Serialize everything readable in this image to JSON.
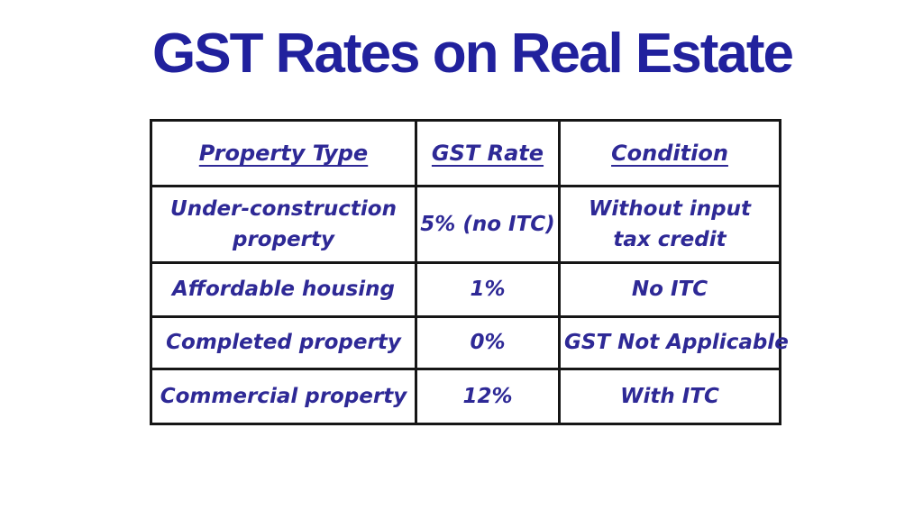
{
  "title": {
    "text": "GST Rates on Real Estate",
    "color": "#21219d"
  },
  "table": {
    "text_color": "#2e2996",
    "border_color": "#161616",
    "headers": [
      "Property Type",
      "GST Rate",
      "Condition"
    ],
    "cells": [
      [
        "Under-construction\nproperty",
        "5% (no ITC)",
        "Without input\ntax credit"
      ],
      [
        "Affordable housing",
        "1%",
        "No ITC"
      ],
      [
        "Completed property",
        "0%",
        "GST Not Applicable"
      ],
      [
        "Commercial property",
        "12%",
        "With ITC"
      ]
    ]
  },
  "chart_data": {
    "type": "table",
    "title": "GST Rates on Real Estate",
    "columns": [
      "Property Type",
      "GST Rate",
      "Condition"
    ],
    "rows": [
      [
        "Under-construction property",
        "5% (no ITC)",
        "Without input tax credit"
      ],
      [
        "Affordable housing",
        "1%",
        "No ITC"
      ],
      [
        "Completed property",
        "0%",
        "GST Not Applicable"
      ],
      [
        "Commercial property",
        "12%",
        "With ITC"
      ]
    ]
  }
}
